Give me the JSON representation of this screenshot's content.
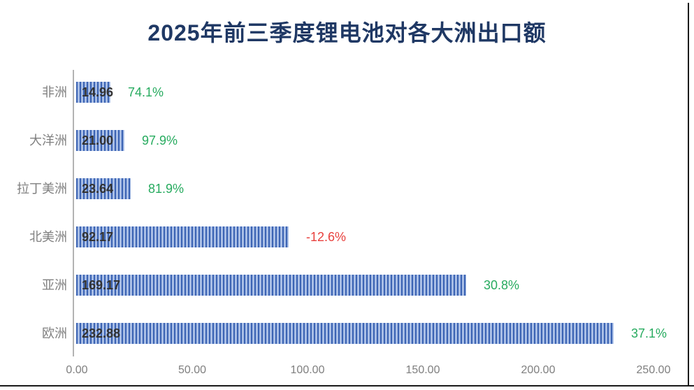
{
  "title": "2025年前三季度锂电池对各大洲出口额",
  "chart_data": {
    "type": "bar",
    "orientation": "horizontal",
    "title": "2025年前三季度锂电池对各大洲出口额",
    "categories": [
      "非洲",
      "大洋洲",
      "拉丁美洲",
      "北美洲",
      "亚洲",
      "欧洲"
    ],
    "values": [
      14.96,
      21.0,
      23.64,
      92.17,
      169.17,
      232.88
    ],
    "value_labels": [
      "14.96",
      "21.00",
      "23.64",
      "92.17",
      "169.17",
      "232.88"
    ],
    "growth_labels": [
      "74.1%",
      "97.9%",
      "81.9%",
      "-12.6%",
      "30.8%",
      "37.1%"
    ],
    "growth_positive": [
      true,
      true,
      true,
      false,
      true,
      true
    ],
    "xlim": [
      0,
      250
    ],
    "x_tick_labels": [
      "0.00",
      "50.00",
      "100.00",
      "150.00",
      "200.00",
      "250.00"
    ],
    "x_tick_values": [
      0,
      50,
      100,
      150,
      200,
      250
    ],
    "grid": false,
    "legend": false,
    "bar_fill_style": "vertical-stripes",
    "colors": {
      "title": "#1f3864",
      "bar_stripe_dark": "#3c64b4",
      "bar_stripe_mid": "#8ea9da",
      "bar_stripe_light": "#bccdee",
      "growth_positive": "#27ab5f",
      "growth_negative": "#e8413e",
      "category_label": "#808080",
      "value_label": "#333333",
      "axis_line": "#b3b3b3",
      "tick_label": "#7f7f7f"
    }
  }
}
